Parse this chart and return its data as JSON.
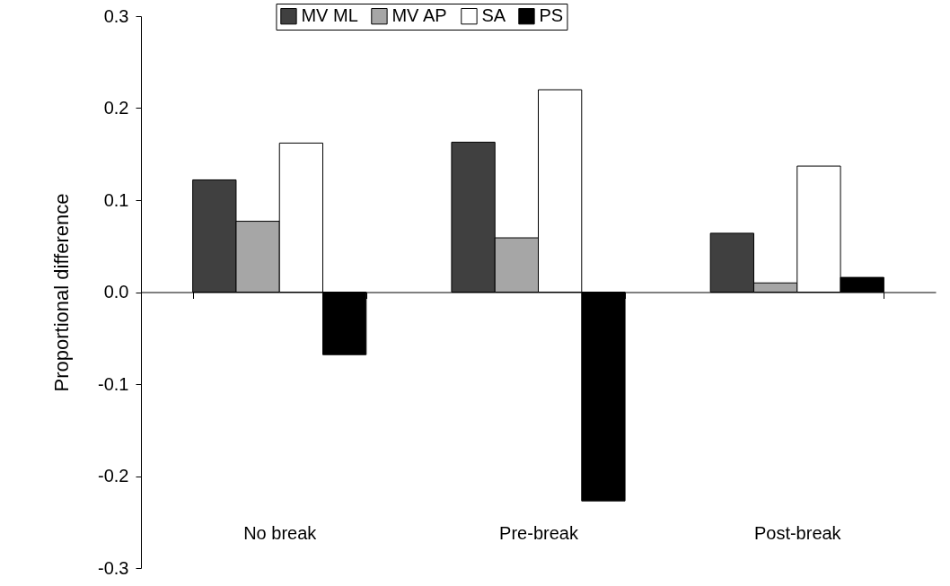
{
  "chart_data": {
    "type": "bar",
    "ylabel": "Proportional difference",
    "categories": [
      "No break",
      "Pre-break",
      "Post-break"
    ],
    "series": [
      {
        "name": "MV ML",
        "color": "#404040",
        "values": [
          0.122,
          0.163,
          0.064
        ]
      },
      {
        "name": "MV AP",
        "color": "#a6a6a6",
        "values": [
          0.077,
          0.059,
          0.01
        ]
      },
      {
        "name": "SA",
        "color": "#ffffff",
        "values": [
          0.162,
          0.22,
          0.137
        ]
      },
      {
        "name": "PS",
        "color": "#000000",
        "values": [
          -0.068,
          -0.227,
          0.016
        ]
      }
    ],
    "ylim": [
      -0.3,
      0.3
    ],
    "yticks": [
      -0.3,
      -0.2,
      -0.1,
      {
        "value": 0,
        "label": "0.0"
      },
      0.1,
      0.2,
      0.3
    ],
    "legend": "top"
  }
}
